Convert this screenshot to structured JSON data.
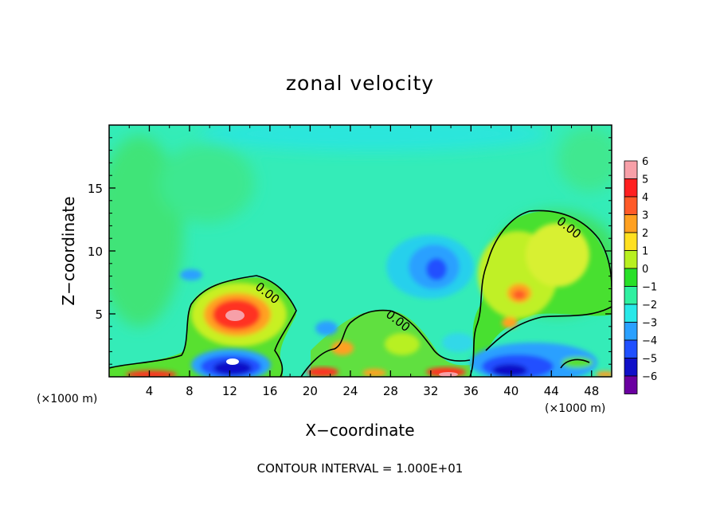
{
  "chart_data": {
    "type": "heatmap",
    "title": "zonal velocity",
    "xlabel": "X−coordinate",
    "ylabel": "Z−coordinate",
    "x_unit_left": "(×1000 m)",
    "x_unit_right": "(×1000 m)",
    "footer": "CONTOUR INTERVAL = 1.000E+01",
    "xlim": [
      0,
      50
    ],
    "ylim": [
      0,
      20
    ],
    "x_ticks": [
      4,
      8,
      12,
      16,
      20,
      24,
      28,
      32,
      36,
      40,
      44,
      48
    ],
    "x_tick_labels": [
      "4",
      "8",
      "12",
      "16",
      "20",
      "24",
      "28",
      "32",
      "36",
      "40",
      "44",
      "48"
    ],
    "y_ticks": [
      5,
      10,
      15
    ],
    "y_tick_labels": [
      "5",
      "10",
      "15"
    ],
    "colorbar": {
      "levels": [
        6,
        5,
        4,
        3,
        2,
        1,
        0,
        -1,
        -2,
        -3,
        -4,
        -5,
        -6
      ],
      "labels": [
        "6",
        "5",
        "4",
        "3",
        "2",
        "1",
        "0",
        "−1",
        "−2",
        "−3",
        "−4",
        "−5",
        "−6"
      ],
      "colors": [
        "#f7a0a8",
        "#ff2020",
        "#ff5a28",
        "#ffa020",
        "#ffe020",
        "#b8f020",
        "#28e028",
        "#30f0a0",
        "#28e8e8",
        "#2aa0ff",
        "#2050ff",
        "#1010c8",
        "#6a00a0"
      ]
    },
    "contour_labels": [
      {
        "text": "0.00",
        "x": 15.5,
        "z": 6.4
      },
      {
        "text": "0.00",
        "x": 28.5,
        "z": 4.2
      },
      {
        "text": "0.00",
        "x": 45.5,
        "z": 11.6
      }
    ],
    "features": [
      {
        "name": "positive-core-left",
        "x": 12.5,
        "z": 5,
        "value": 5
      },
      {
        "name": "negative-core-mid",
        "x": 32.3,
        "z": 8.5,
        "value": -3
      },
      {
        "name": "positive-core-right",
        "x": 39.5,
        "z": 6.5,
        "value": 3
      },
      {
        "name": "negative-surface-right",
        "x": 41,
        "z": 1,
        "value": -4
      }
    ],
    "background_value": -1
  }
}
